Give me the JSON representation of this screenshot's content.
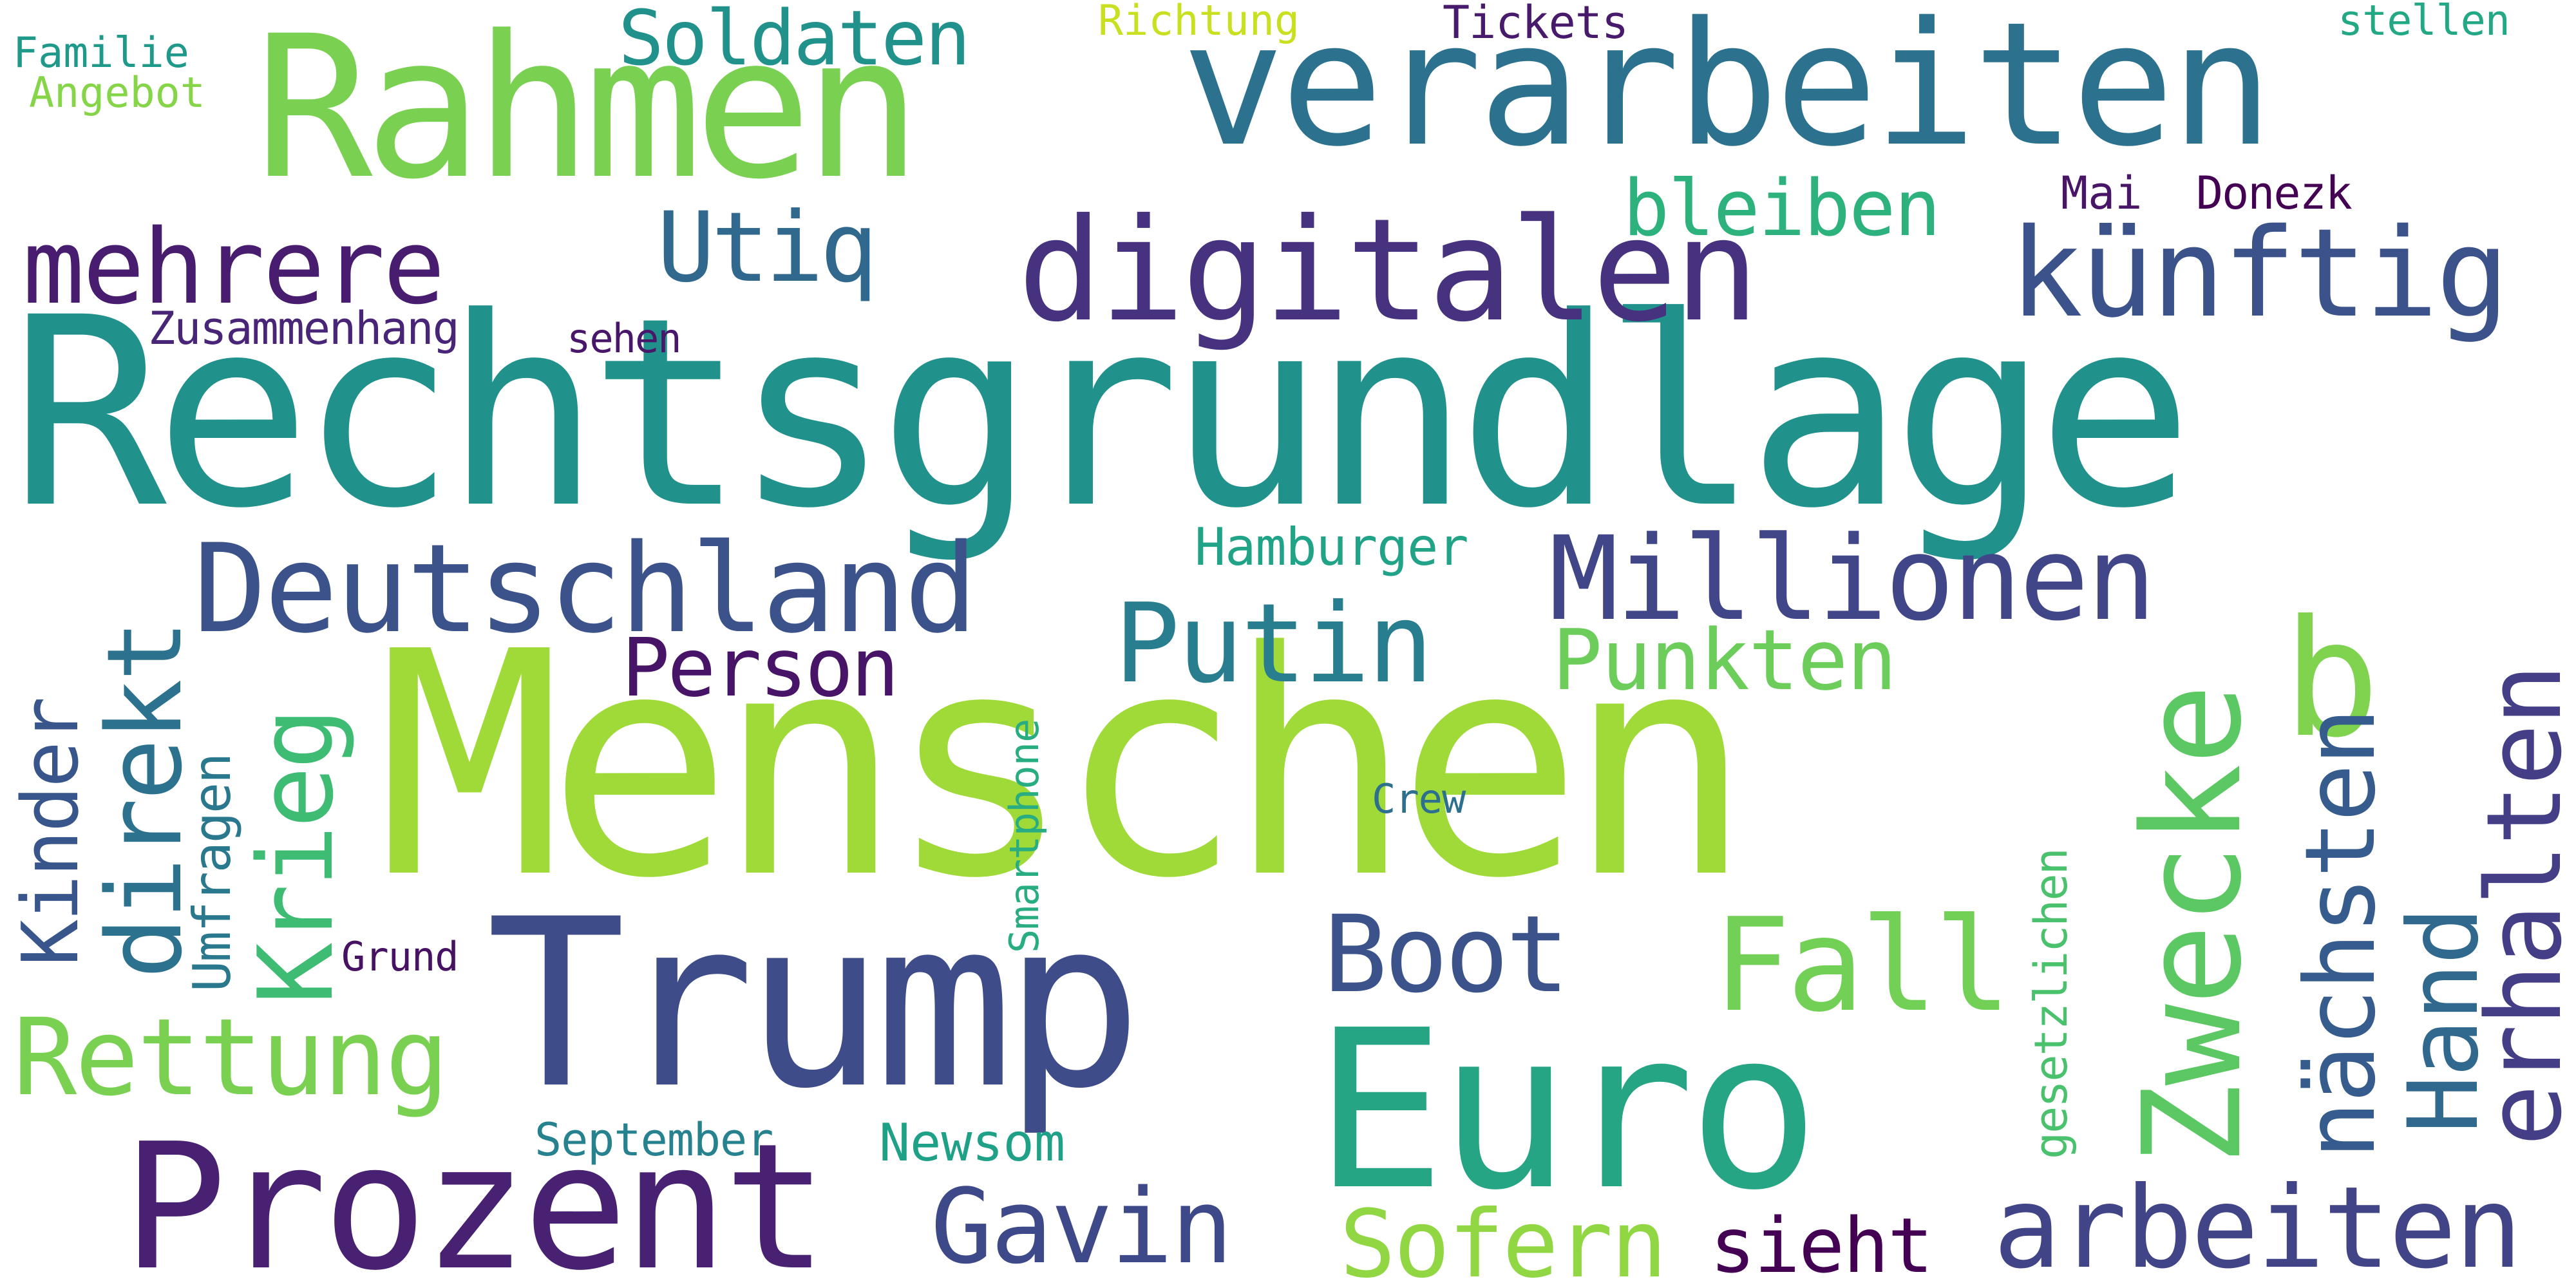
{
  "words": [
    {
      "text": "Menschen",
      "color": "#a0da39"
    },
    {
      "text": "Rechtsgrundlage",
      "color": "#21918c"
    },
    {
      "text": "Trump",
      "color": "#3e4c8a"
    },
    {
      "text": "Euro",
      "color": "#25a584"
    },
    {
      "text": "Rahmen",
      "color": "#7ad151"
    },
    {
      "text": "verarbeiten",
      "color": "#2c728e"
    },
    {
      "text": "Prozent",
      "color": "#482173"
    },
    {
      "text": "digitalen",
      "color": "#46327e"
    },
    {
      "text": "Deutschland",
      "color": "#3b528b"
    },
    {
      "text": "Millionen",
      "color": "#404688"
    },
    {
      "text": "Zwecke",
      "color": "#5cc863"
    },
    {
      "text": "b",
      "color": "#7fd34e"
    },
    {
      "text": "erhalten",
      "color": "#433e85"
    },
    {
      "text": "arbeiten",
      "color": "#414487"
    },
    {
      "text": "künftig",
      "color": "#3b528b"
    },
    {
      "text": "mehrere",
      "color": "#481d6f"
    },
    {
      "text": "nächsten",
      "color": "#365c8d"
    },
    {
      "text": "Hand",
      "color": "#31688e"
    },
    {
      "text": "Fall",
      "color": "#73d056"
    },
    {
      "text": "Gavin",
      "color": "#3e4989"
    },
    {
      "text": "Sofern",
      "color": "#90d743"
    },
    {
      "text": "direkt",
      "color": "#2c728e"
    },
    {
      "text": "Krieg",
      "color": "#3fbc73"
    },
    {
      "text": "Putin",
      "color": "#287d8e"
    },
    {
      "text": "Boot",
      "color": "#3b528b"
    },
    {
      "text": "Rettung",
      "color": "#7ad151"
    },
    {
      "text": "Kinder",
      "color": "#39568c"
    },
    {
      "text": "Utiq",
      "color": "#31688e"
    },
    {
      "text": "Soldaten",
      "color": "#21918c"
    },
    {
      "text": "bleiben",
      "color": "#2db27d"
    },
    {
      "text": "Punkten",
      "color": "#6ccd5a"
    },
    {
      "text": "Person",
      "color": "#481467"
    },
    {
      "text": "sieht",
      "color": "#440154"
    },
    {
      "text": "Hamburger",
      "color": "#20a386"
    },
    {
      "text": "Umfragen",
      "color": "#2a788e"
    },
    {
      "text": "Newsom",
      "color": "#1fa187"
    },
    {
      "text": "Zusammenhang",
      "color": "#482576"
    },
    {
      "text": "Smartphone",
      "color": "#27ad81"
    },
    {
      "text": "gesetzlichen",
      "color": "#4ac16d"
    },
    {
      "text": "September",
      "color": "#26828e"
    },
    {
      "text": "Donezk",
      "color": "#440154"
    },
    {
      "text": "Familie",
      "color": "#1f9a8a"
    },
    {
      "text": "Angebot",
      "color": "#86d549"
    },
    {
      "text": "Richtung",
      "color": "#c8e020"
    },
    {
      "text": "Tickets",
      "color": "#481a6c"
    },
    {
      "text": "stellen",
      "color": "#22a884"
    },
    {
      "text": "Mai",
      "color": "#481567"
    },
    {
      "text": "sehen",
      "color": "#481769"
    },
    {
      "text": "Grund",
      "color": "#471164"
    },
    {
      "text": "Crew",
      "color": "#2d708e"
    }
  ]
}
